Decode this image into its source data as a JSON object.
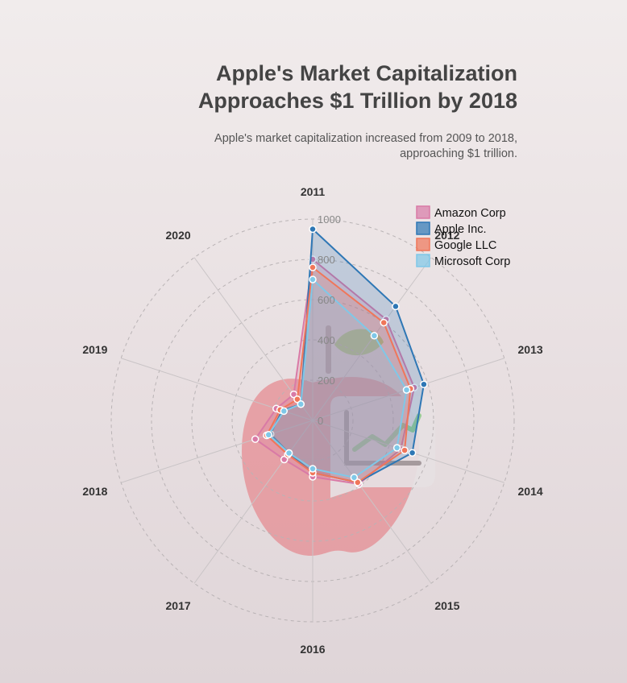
{
  "chart_data": {
    "type": "radar",
    "title_lines": [
      "Apple's Market Capitalization",
      "Approaches $1 Trillion by 2018"
    ],
    "subtitle_lines": [
      "Apple's market capitalization increased from 2009 to 2018,",
      "approaching $1 trillion."
    ],
    "categories": [
      "2011",
      "2012",
      "2013",
      "2014",
      "2015",
      "2016",
      "2017",
      "2018",
      "2019",
      "2020"
    ],
    "rlim": [
      0,
      1000
    ],
    "ticks": [
      0,
      200,
      400,
      600,
      800,
      1000
    ],
    "grid": true,
    "legend_position": "top-right",
    "series": [
      {
        "name": "Amazon Corp",
        "color": "#d97aa6",
        "values": [
          800,
          620,
          530,
          460,
          390,
          280,
          240,
          300,
          190,
          160
        ]
      },
      {
        "name": "Apple Inc.",
        "color": "#2e77b5",
        "values": [
          950,
          700,
          580,
          520,
          380,
          260,
          200,
          220,
          160,
          100
        ]
      },
      {
        "name": "Google LLC",
        "color": "#f0765a",
        "values": [
          760,
          600,
          510,
          480,
          380,
          260,
          210,
          240,
          170,
          130
        ]
      },
      {
        "name": "Microsoft Corp",
        "color": "#7fc8e8",
        "values": [
          700,
          520,
          490,
          440,
          350,
          240,
          200,
          230,
          150,
          100
        ]
      }
    ]
  }
}
